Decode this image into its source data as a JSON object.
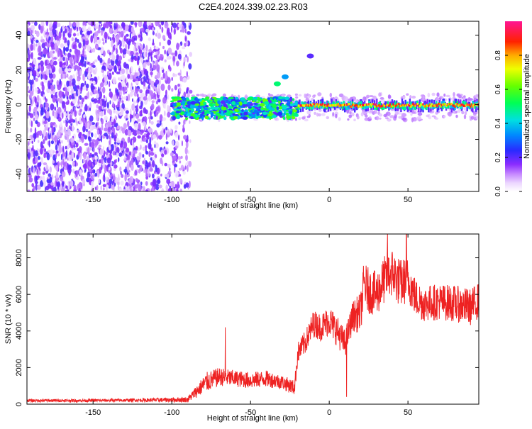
{
  "figure_title": "C2E4.2024.339.02.23.R03",
  "chart_data": [
    {
      "type": "heatmap",
      "xlabel": "Height of straight line (km)",
      "ylabel": "Frequency (Hz)",
      "xlim": [
        -192,
        95
      ],
      "ylim": [
        -50,
        48
      ],
      "xticks": [
        -150,
        -100,
        -50,
        0,
        50
      ],
      "yticks": [
        -40,
        -20,
        0,
        20,
        40
      ],
      "colorbar": {
        "label": "Normalized spectral amplitude",
        "range": [
          0,
          1
        ],
        "ticks": [
          0.0,
          0.2,
          0.4,
          0.6,
          0.8
        ]
      },
      "regions": [
        {
          "name": "noise",
          "x_range": [
            -192,
            -88
          ],
          "freq_range": [
            -50,
            48
          ],
          "amplitude": 0.2
        },
        {
          "name": "echo-band",
          "x_range": [
            -100,
            -20
          ],
          "freq_range": [
            -8,
            4
          ],
          "amplitude": 0.45
        },
        {
          "name": "main-echo",
          "x_range": [
            -20,
            95
          ],
          "freq_range": [
            -2,
            1
          ],
          "amplitude": 0.9
        }
      ],
      "features": [
        {
          "x": -33,
          "freq": 12,
          "amplitude": 0.5
        },
        {
          "x": -28,
          "freq": 16,
          "amplitude": 0.35
        },
        {
          "x": -12,
          "freq": 28,
          "amplitude": 0.2
        }
      ]
    },
    {
      "type": "line",
      "xlabel": "Height of straight line (km)",
      "ylabel": "SNR (10 * v/v)",
      "xlim": [
        -192,
        95
      ],
      "ylim": [
        0,
        9300
      ],
      "xticks": [
        -150,
        -100,
        -50,
        0,
        50
      ],
      "yticks": [
        0,
        2000,
        4000,
        6000,
        8000
      ],
      "color": "#ee2222",
      "series": [
        {
          "x": [
            -192,
            -150,
            -120,
            -90,
            -78,
            -70,
            -60,
            -50,
            -40,
            -30,
            -22,
            -20,
            -15,
            -10,
            -5,
            0,
            5,
            10,
            15,
            20,
            22,
            25,
            30,
            35,
            40,
            45,
            50,
            55,
            60,
            70,
            80,
            90,
            95
          ],
          "values": [
            200,
            200,
            220,
            250,
            1200,
            1500,
            1400,
            1300,
            1400,
            1200,
            900,
            2800,
            3400,
            4400,
            4200,
            4600,
            4000,
            3300,
            4800,
            5000,
            6600,
            6200,
            6000,
            6800,
            7200,
            6600,
            6800,
            5800,
            5500,
            5600,
            5500,
            5300,
            5700
          ],
          "noise_amplitude": [
            80,
            80,
            90,
            150,
            550,
            500,
            450,
            450,
            450,
            400,
            400,
            600,
            650,
            750,
            750,
            850,
            850,
            750,
            850,
            1100,
            1200,
            1250,
            1250,
            1300,
            1350,
            1350,
            1250,
            1050,
            1000,
            1000,
            1000,
            1000,
            1000
          ],
          "notable_points": [
            {
              "x": -66,
              "value": 4200
            },
            {
              "x": 11,
              "value": 400
            },
            {
              "x": 37,
              "value": 9300
            },
            {
              "x": 49,
              "value": 9300
            }
          ]
        }
      ]
    }
  ]
}
